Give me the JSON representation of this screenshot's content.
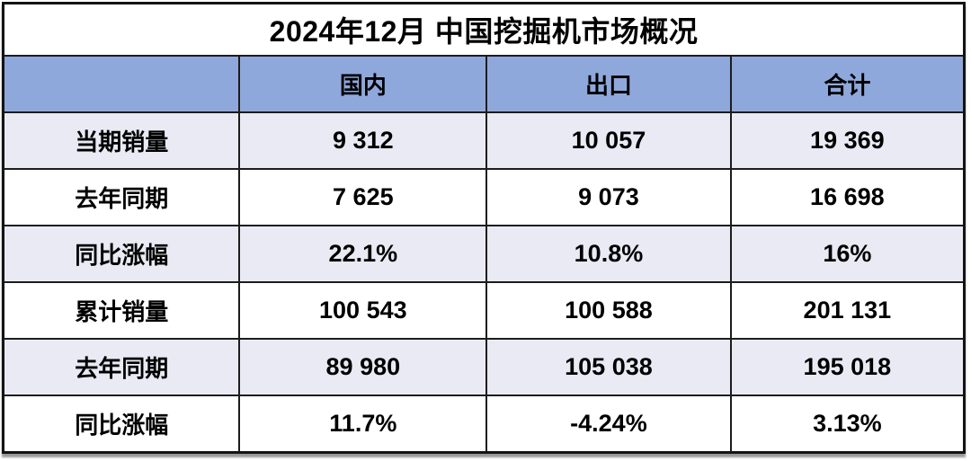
{
  "chart_data": {
    "type": "table",
    "title": "2024年12月 中国挖掘机市场概况",
    "columns": [
      "",
      "国内",
      "出口",
      "合计"
    ],
    "rows": [
      [
        "当期销量",
        "9 312",
        "10 057",
        "19 369"
      ],
      [
        "去年同期",
        "7 625",
        "9 073",
        "16 698"
      ],
      [
        "同比涨幅",
        "22.1%",
        "10.8%",
        "16%"
      ],
      [
        "累计销量",
        "100 543",
        "100 588",
        "201 131"
      ],
      [
        "去年同期",
        "89 980",
        "105 038",
        "195 018"
      ],
      [
        "同比涨幅",
        "11.7%",
        "-4.24%",
        "3.13%"
      ]
    ],
    "layout_hints": {
      "row_label_column": true,
      "alternating_row_shading": true
    }
  },
  "colors": {
    "header_bg": "#8fa8dc",
    "alt_row_bg": "#e9eaf4",
    "row_bg": "#ffffff",
    "border": "#1c1c1c",
    "text": "#000000",
    "title_bg": "#ffffff"
  }
}
